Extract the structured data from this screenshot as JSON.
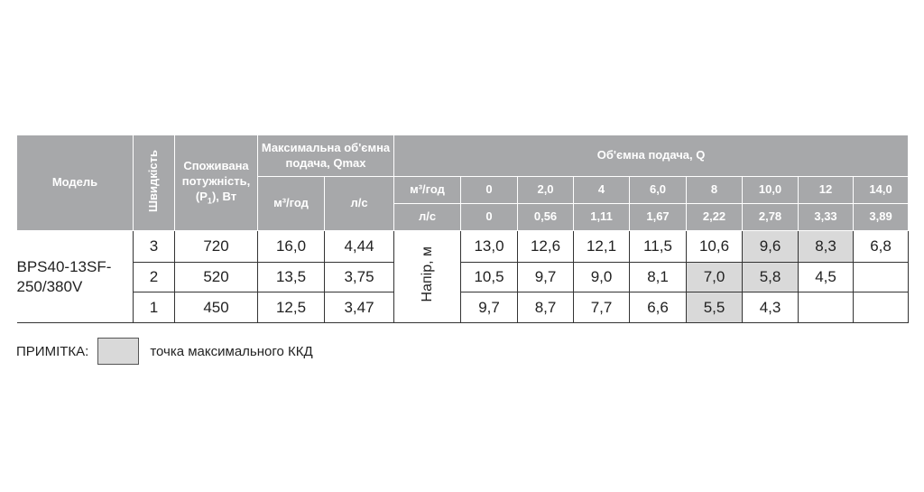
{
  "table": {
    "header": {
      "model": "Модель",
      "speed": "Швидкість",
      "power": [
        "Споживана потужність, (P",
        "1",
        "), Вт"
      ],
      "qmax": "Максимальна об'ємна подача, Qmax",
      "qmax_units": [
        "м³/год",
        "л/с"
      ],
      "flow": "Об'ємна подача, Q",
      "flow_m3_label": "м³/год",
      "flow_m3": [
        "0",
        "2,0",
        "4",
        "6,0",
        "8",
        "10,0",
        "12",
        "14,0"
      ],
      "flow_ls_label": "л/с",
      "flow_ls": [
        "0",
        "0,56",
        "1,11",
        "1,67",
        "2,22",
        "2,78",
        "3,33",
        "3,89"
      ]
    },
    "model": "BPS40-13SF-250/380V",
    "head_label": "Напір, м",
    "rows": [
      {
        "speed": "3",
        "power": "720",
        "qmax_m3": "16,0",
        "qmax_ls": "4,44",
        "head": [
          "13,0",
          "12,6",
          "12,1",
          "11,5",
          "10,6",
          "9,6",
          "8,3",
          "6,8"
        ],
        "max_kkd": [
          5,
          6
        ]
      },
      {
        "speed": "2",
        "power": "520",
        "qmax_m3": "13,5",
        "qmax_ls": "3,75",
        "head": [
          "10,5",
          "9,7",
          "9,0",
          "8,1",
          "7,0",
          "5,8",
          "4,5",
          null
        ],
        "max_kkd": [
          4,
          5
        ]
      },
      {
        "speed": "1",
        "power": "450",
        "qmax_m3": "12,5",
        "qmax_ls": "3,47",
        "head": [
          "9,7",
          "8,7",
          "7,7",
          "6,6",
          "5,5",
          "4,3",
          null,
          null
        ],
        "max_kkd": [
          4
        ]
      }
    ]
  },
  "note": {
    "label": "ПРИМІТКА:",
    "text": "точка максимального ККД"
  }
}
